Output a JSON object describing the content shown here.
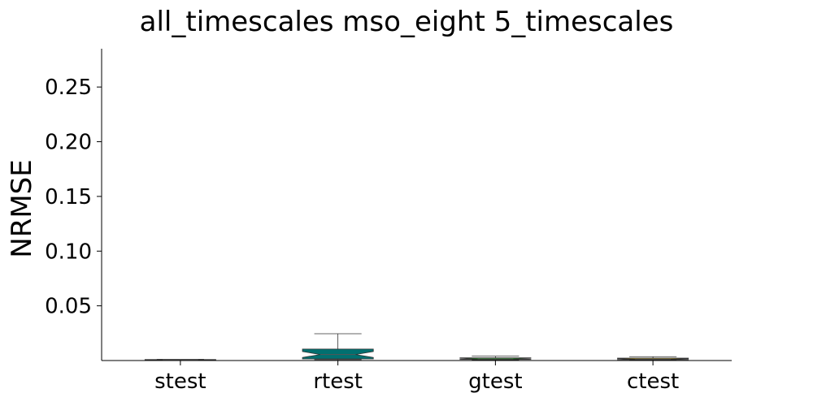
{
  "chart_data": {
    "type": "boxplot",
    "title": "all_timescales mso_eight 5_timescales",
    "xlabel": "",
    "ylabel": "NRMSE",
    "ylim": [
      0.0,
      0.285
    ],
    "yticks": [
      0.05,
      0.1,
      0.15,
      0.2,
      0.25
    ],
    "ytick_labels": [
      "0.05",
      "0.10",
      "0.15",
      "0.20",
      "0.25"
    ],
    "categories": [
      "stest",
      "rtest",
      "gtest",
      "ctest"
    ],
    "notched": true,
    "grid": false,
    "boxes": [
      {
        "name": "stest",
        "color": "#00008b",
        "whislo": 0.0003,
        "q1": 0.0005,
        "median": 0.0007,
        "q3": 0.0009,
        "whishi": 0.0011
      },
      {
        "name": "rtest",
        "color": "#007070",
        "whislo": 0.0008,
        "q1": 0.0015,
        "median": 0.0055,
        "q3": 0.0105,
        "whishi": 0.0245
      },
      {
        "name": "gtest",
        "color": "#22aa22",
        "whislo": 0.0005,
        "q1": 0.0009,
        "median": 0.0016,
        "q3": 0.0025,
        "whishi": 0.004
      },
      {
        "name": "ctest",
        "color": "#e6b800",
        "whislo": 0.0004,
        "q1": 0.0008,
        "median": 0.0014,
        "q3": 0.0022,
        "whishi": 0.0035
      }
    ]
  }
}
